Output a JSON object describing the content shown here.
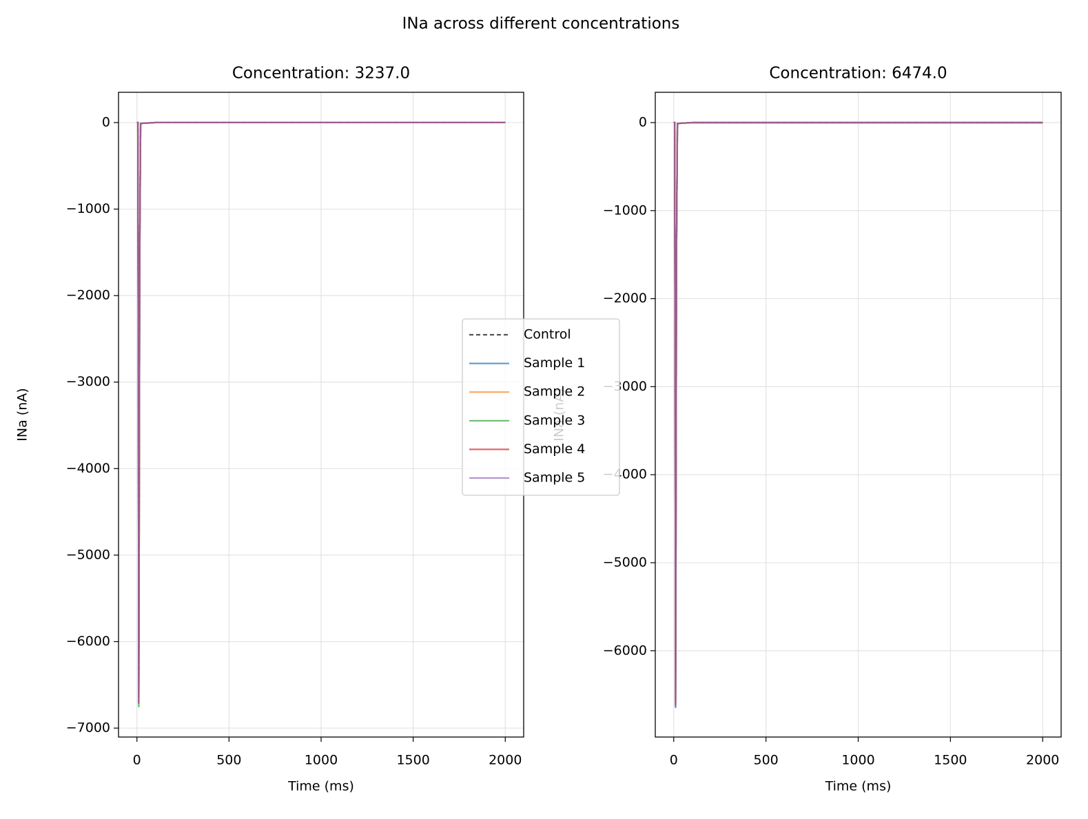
{
  "title": "INa across different concentrations",
  "chart_data": [
    {
      "type": "line",
      "title": "Concentration: 3237.0",
      "xlabel": "Time (ms)",
      "ylabel": "INa (nA)",
      "x": [
        0,
        5,
        8,
        10,
        12,
        15,
        20,
        100,
        2000
      ],
      "series": [
        {
          "name": "Control",
          "color": "#404040",
          "linestyle": "dashed",
          "values": [
            0,
            0,
            -3200,
            -6700,
            -4800,
            -1500,
            -10,
            0,
            0
          ]
        },
        {
          "name": "Sample 1",
          "color": "#1f77b4",
          "values": [
            0,
            0,
            -3250,
            -6720,
            -4850,
            -1550,
            -10,
            0,
            0
          ]
        },
        {
          "name": "Sample 2",
          "color": "#ff7f0e",
          "values": [
            0,
            0,
            -3200,
            -6700,
            -4800,
            -1500,
            -10,
            0,
            0
          ]
        },
        {
          "name": "Sample 3",
          "color": "#2ca02c",
          "values": [
            0,
            0,
            -3300,
            -6760,
            -4900,
            -1600,
            -10,
            0,
            0
          ]
        },
        {
          "name": "Sample 4",
          "color": "#d62728",
          "values": [
            0,
            0,
            -3220,
            -6710,
            -4820,
            -1520,
            -10,
            0,
            0
          ]
        },
        {
          "name": "Sample 5",
          "color": "#9467bd",
          "values": [
            0,
            0,
            -3210,
            -6705,
            -4810,
            -1510,
            -10,
            0,
            0
          ]
        }
      ],
      "xlim": [
        -100,
        2100
      ],
      "ylim": [
        -7103,
        350
      ],
      "xticks": [
        0,
        500,
        1000,
        1500,
        2000
      ],
      "yticks": [
        0,
        {
          "value": -1000,
          "label": "−1000"
        },
        {
          "value": -2000,
          "label": "−2000"
        },
        {
          "value": -3000,
          "label": "−3000"
        },
        {
          "value": -4000,
          "label": "−4000"
        },
        {
          "value": -5000,
          "label": "−5000"
        },
        {
          "value": -6000,
          "label": "−6000"
        },
        {
          "value": -7000,
          "label": "−7000"
        }
      ],
      "grid": true,
      "legend": "right"
    },
    {
      "type": "line",
      "title": "Concentration: 6474.0",
      "xlabel": "Time (ms)",
      "ylabel": "INa (nA)",
      "x": [
        0,
        5,
        8,
        10,
        12,
        15,
        20,
        100,
        2000
      ],
      "series": [
        {
          "color": "#404040",
          "linestyle": "dashed",
          "values": [
            0,
            0,
            -3150,
            -6600,
            -4700,
            -1450,
            -10,
            0,
            0
          ]
        },
        {
          "color": "#1f77b4",
          "values": [
            0,
            0,
            -3180,
            -6650,
            -4750,
            -1480,
            -10,
            0,
            0
          ]
        },
        {
          "color": "#ff7f0e",
          "values": [
            0,
            0,
            -3150,
            -6600,
            -4700,
            -1450,
            -10,
            0,
            0
          ]
        },
        {
          "color": "#2ca02c",
          "values": [
            0,
            0,
            -3160,
            -6620,
            -4720,
            -1460,
            -10,
            0,
            0
          ]
        },
        {
          "color": "#d62728",
          "values": [
            0,
            0,
            -3170,
            -6630,
            -4730,
            -1470,
            -10,
            0,
            0
          ]
        },
        {
          "color": "#9467bd",
          "values": [
            0,
            0,
            -3175,
            -6640,
            -4740,
            -1475,
            -10,
            0,
            0
          ]
        }
      ],
      "xlim": [
        -100,
        2100
      ],
      "ylim": [
        -6980,
        344
      ],
      "xticks": [
        0,
        500,
        1000,
        1500,
        2000
      ],
      "yticks": [
        0,
        {
          "value": -1000,
          "label": "−1000"
        },
        {
          "value": -2000,
          "label": "−2000"
        },
        {
          "value": -3000,
          "label": "−3000"
        },
        {
          "value": -4000,
          "label": "−4000"
        },
        {
          "value": -5000,
          "label": "−5000"
        },
        {
          "value": -6000,
          "label": "−6000"
        }
      ],
      "grid": true
    }
  ]
}
